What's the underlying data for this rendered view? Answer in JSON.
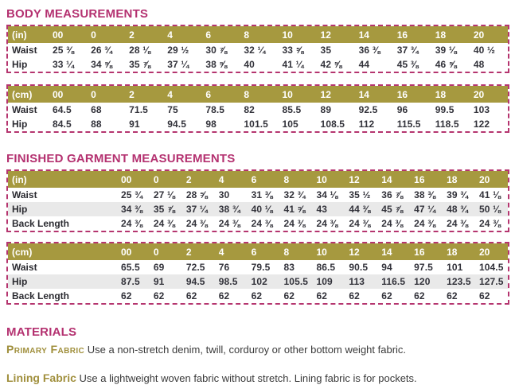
{
  "colors": {
    "accent_magenta": "#b43170",
    "table_header_olive": "#a6993f",
    "shaded_row_gray": "#e9e9e9",
    "body_text": "#32323a"
  },
  "body_measurements": {
    "title": "BODY MEASUREMENTS",
    "tables": [
      {
        "unit_label": "(in)",
        "sizes": [
          "00",
          "0",
          "2",
          "4",
          "6",
          "8",
          "10",
          "12",
          "14",
          "16",
          "18",
          "20"
        ],
        "rows": [
          {
            "label": "Waist",
            "shade": false,
            "values": [
              "25 ⅜",
              "26 ¾",
              "28 ⅛",
              "29 ½",
              "30 ⅞",
              "32 ¼",
              "33 ⅝",
              "35",
              "36 ⅜",
              "37 ¾",
              "39 ⅛",
              "40 ½"
            ]
          },
          {
            "label": "Hip",
            "shade": false,
            "values": [
              "33 ¼",
              "34 ⅝",
              "35 ⅞",
              "37 ¼",
              "38 ⅝",
              "40",
              "41 ¼",
              "42 ⅝",
              "44",
              "45 ⅜",
              "46 ⅝",
              "48"
            ]
          }
        ]
      },
      {
        "unit_label": "(cm)",
        "sizes": [
          "00",
          "0",
          "2",
          "4",
          "6",
          "8",
          "10",
          "12",
          "14",
          "16",
          "18",
          "20"
        ],
        "rows": [
          {
            "label": "Waist",
            "shade": false,
            "values": [
              "64.5",
              "68",
              "71.5",
              "75",
              "78.5",
              "82",
              "85.5",
              "89",
              "92.5",
              "96",
              "99.5",
              "103"
            ]
          },
          {
            "label": "Hip",
            "shade": false,
            "values": [
              "84.5",
              "88",
              "91",
              "94.5",
              "98",
              "101.5",
              "105",
              "108.5",
              "112",
              "115.5",
              "118.5",
              "122"
            ]
          }
        ]
      }
    ]
  },
  "finished_garment": {
    "title": "FINISHED GARMENT MEASUREMENTS",
    "tables": [
      {
        "unit_label": "(in)",
        "sizes": [
          "00",
          "0",
          "2",
          "4",
          "6",
          "8",
          "10",
          "12",
          "14",
          "16",
          "18",
          "20"
        ],
        "rows": [
          {
            "label": "Waist",
            "shade": false,
            "values": [
              "25 ¾",
              "27 ⅛",
              "28 ⅝",
              "30",
              "31 ⅜",
              "32 ¾",
              "34 ⅛",
              "35 ½",
              "36 ⅞",
              "38 ⅜",
              "39 ¾",
              "41 ⅛"
            ]
          },
          {
            "label": "Hip",
            "shade": true,
            "values": [
              "34 ⅜",
              "35 ⅞",
              "37 ¼",
              "38 ¾",
              "40 ⅛",
              "41 ⅝",
              "43",
              "44 ⅜",
              "45 ⅞",
              "47 ¼",
              "48 ¾",
              "50 ⅛"
            ]
          },
          {
            "label": "Back Length",
            "shade": false,
            "values": [
              "24 ⅜",
              "24 ⅜",
              "24 ⅜",
              "24 ⅜",
              "24 ⅜",
              "24 ⅜",
              "24 ⅜",
              "24 ⅜",
              "24 ⅜",
              "24 ⅜",
              "24 ⅜",
              "24 ⅜"
            ]
          }
        ]
      },
      {
        "unit_label": "(cm)",
        "sizes": [
          "00",
          "0",
          "2",
          "4",
          "6",
          "8",
          "10",
          "12",
          "14",
          "16",
          "18",
          "20"
        ],
        "rows": [
          {
            "label": "Waist",
            "shade": false,
            "values": [
              "65.5",
              "69",
              "72.5",
              "76",
              "79.5",
              "83",
              "86.5",
              "90.5",
              "94",
              "97.5",
              "101",
              "104.5"
            ]
          },
          {
            "label": "Hip",
            "shade": true,
            "values": [
              "87.5",
              "91",
              "94.5",
              "98.5",
              "102",
              "105.5",
              "109",
              "113",
              "116.5",
              "120",
              "123.5",
              "127.5"
            ]
          },
          {
            "label": "Back Length",
            "shade": false,
            "values": [
              "62",
              "62",
              "62",
              "62",
              "62",
              "62",
              "62",
              "62",
              "62",
              "62",
              "62",
              "62"
            ]
          }
        ]
      }
    ]
  },
  "materials": {
    "title": "MATERIALS",
    "items": [
      {
        "label": "Primary Fabric",
        "text": "Use a non-stretch denim, twill, corduroy or other bottom weight fabric."
      },
      {
        "label": "Lining Fabric",
        "text": "Use a lightweight woven fabric without stretch. Lining fabric is for pockets."
      }
    ]
  }
}
